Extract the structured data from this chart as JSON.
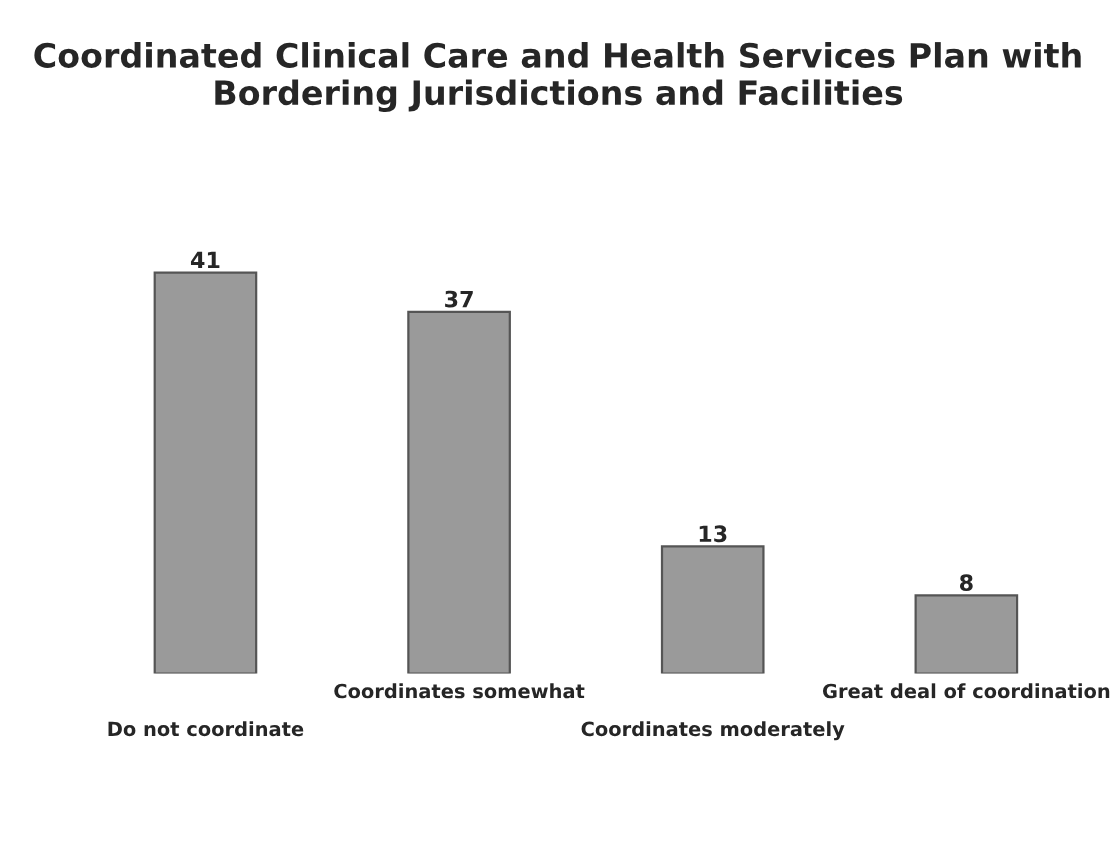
{
  "chart_data": {
    "type": "bar",
    "title": "Coordinated Clinical Care and Health Services Plan with Bordering Jurisdictions and Facilities",
    "categories": [
      "Do not coordinate",
      "Coordinates somewhat",
      "Coordinates moderately",
      "Great deal of coordination"
    ],
    "values": [
      41,
      37,
      13,
      8
    ],
    "color": "#9a9a9a",
    "data_labels": true,
    "grid": false,
    "legend": false
  }
}
